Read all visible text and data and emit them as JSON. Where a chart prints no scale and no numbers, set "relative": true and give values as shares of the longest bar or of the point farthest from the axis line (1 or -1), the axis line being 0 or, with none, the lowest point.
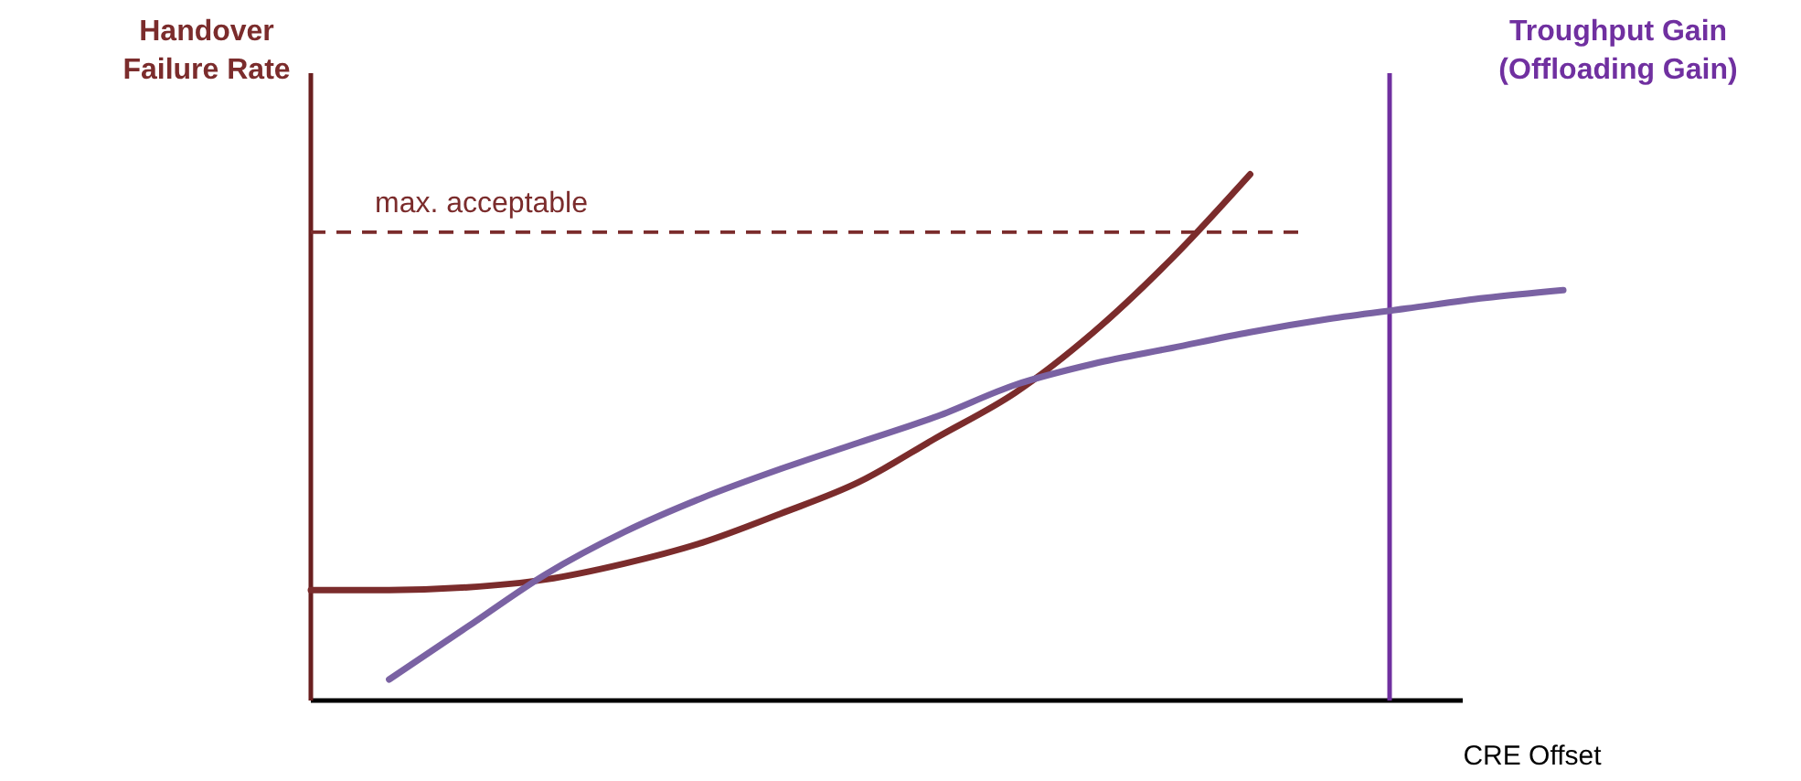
{
  "chart_data": {
    "type": "line",
    "relative": true,
    "ylabel": "Handover Failure Rate",
    "y2label": "Troughput Gain (Offloading Gain)",
    "xlabel": "CRE Offset",
    "categories": [
      null,
      null,
      null,
      null,
      null,
      null,
      null,
      null,
      null,
      null,
      null,
      null,
      null,
      null,
      null,
      null,
      null
    ],
    "series": [
      {
        "color": "#7b2c2c",
        "values": [
          0.21,
          0.21,
          0.215,
          0.23,
          0.26,
          0.3,
          0.355,
          0.415,
          0.5,
          0.585,
          0.7,
          0.84,
          1.0,
          null,
          null,
          null,
          null
        ]
      },
      {
        "color": "#7a62a3",
        "values": [
          null,
          0.04,
          0.14,
          0.24,
          0.32,
          0.385,
          0.44,
          0.49,
          0.54,
          0.6,
          0.64,
          0.67,
          0.7,
          0.725,
          0.745,
          0.765,
          0.78
        ]
      }
    ],
    "ref_lines": [
      {
        "axis": "y",
        "value": 0.89,
        "label": "max. acceptable",
        "color": "#7b2c2c",
        "line_style": "dashed"
      }
    ],
    "line_style": "solid"
  }
}
